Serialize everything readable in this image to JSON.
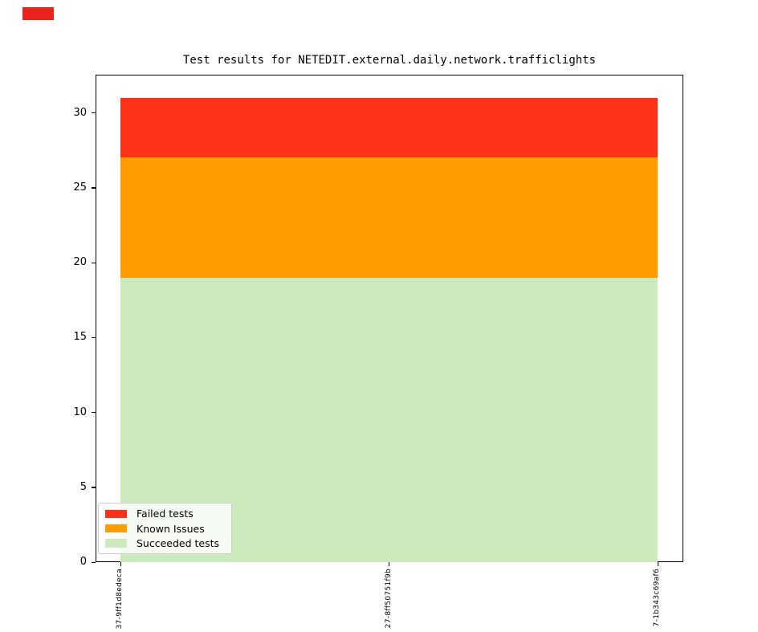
{
  "figure": {
    "status_color": "#e8251c",
    "background": "#ffffff"
  },
  "chart_data": {
    "type": "area",
    "title": "Test results for NETEDIT.external.daily.network.trafficlights",
    "x_labels": [
      "37-9ff1d8edeca",
      "27-8ff50751f9b",
      "7-1b343c69af6"
    ],
    "series": [
      {
        "name": "Failed tests",
        "color": "#ff3118",
        "values": [
          4,
          4,
          4
        ]
      },
      {
        "name": "Known Issues",
        "color": "#ff9c00",
        "values": [
          8,
          8,
          8
        ]
      },
      {
        "name": "Succeeded tests",
        "color": "#cdeabc",
        "values": [
          19,
          19,
          19
        ]
      }
    ],
    "totals": [
      31,
      31,
      31
    ],
    "y_ticks": [
      0,
      5,
      10,
      15,
      20,
      25,
      30
    ],
    "ylim": [
      0,
      32.5
    ],
    "xlabel": "",
    "ylabel": "",
    "grid": false,
    "legend": {
      "position": "lower left"
    }
  }
}
